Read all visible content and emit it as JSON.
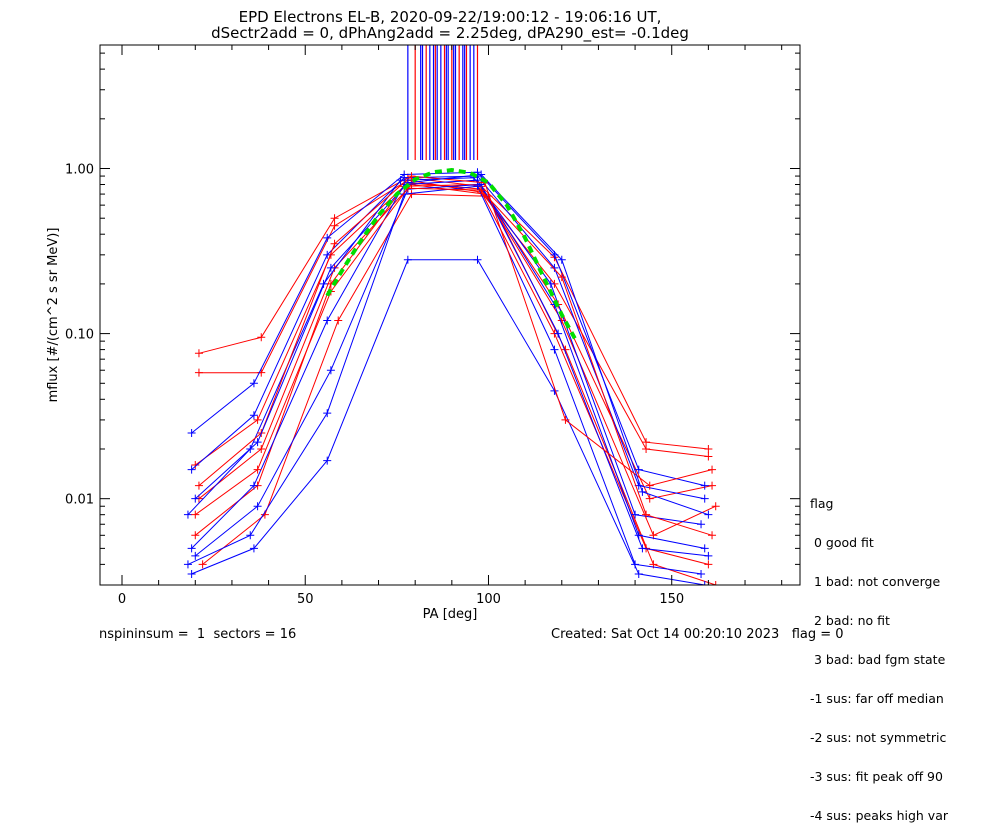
{
  "chart_data": {
    "type": "scatter",
    "title": "EPD Electrons EL-B, 2020-09-22/19:00:12 - 19:06:16 UT,",
    "subtitle": "dSectr2add = 0, dPhAng2add = 2.25deg, dPA290_est=  -0.1deg",
    "xlabel": "PA [deg]",
    "ylabel": "mflux [#/(cm^2 s sr MeV)]",
    "xlim": [
      -6,
      185
    ],
    "ylim": [
      0.003,
      5.6
    ],
    "y_scale": "log",
    "x_ticks": [
      0,
      50,
      100,
      150
    ],
    "x_tick_labels": [
      "0",
      "50",
      "100",
      "150"
    ],
    "y_ticks": [
      0.01,
      0.1,
      1.0
    ],
    "y_tick_labels": [
      "0.01",
      "0.10",
      "1.00"
    ],
    "colors": {
      "red": "#ff0000",
      "blue": "#0000ff",
      "fit": "#00dd00",
      "axis": "#000000"
    },
    "series": [
      {
        "color": "red",
        "x": [
          21,
          38,
          58,
          78,
          98,
          118,
          143,
          160
        ],
        "y": [
          0.076,
          0.095,
          0.5,
          0.88,
          0.78,
          0.29,
          0.022,
          0.02
        ]
      },
      {
        "color": "red",
        "x": [
          21,
          38,
          58,
          78,
          98,
          118,
          143,
          160
        ],
        "y": [
          0.058,
          0.058,
          0.45,
          0.85,
          0.72,
          0.2,
          0.02,
          0.018
        ]
      },
      {
        "color": "red",
        "x": [
          20,
          37,
          57,
          78,
          98,
          119,
          144,
          161
        ],
        "y": [
          0.016,
          0.03,
          0.3,
          0.82,
          0.75,
          0.15,
          0.01,
          0.012
        ]
      },
      {
        "color": "red",
        "x": [
          21,
          38,
          58,
          79,
          99,
          120,
          145,
          162
        ],
        "y": [
          0.01,
          0.02,
          0.25,
          0.8,
          0.7,
          0.12,
          0.006,
          0.009
        ]
      },
      {
        "color": "red",
        "x": [
          20,
          37,
          57,
          77,
          97,
          118,
          143,
          160
        ],
        "y": [
          0.006,
          0.012,
          0.2,
          0.78,
          0.8,
          0.1,
          0.005,
          0.004
        ]
      },
      {
        "color": "red",
        "x": [
          22,
          39,
          59,
          79,
          100,
          121,
          145,
          162
        ],
        "y": [
          0.004,
          0.008,
          0.12,
          0.7,
          0.68,
          0.08,
          0.004,
          0.003
        ]
      },
      {
        "color": "blue",
        "x": [
          19,
          36,
          56,
          77,
          97,
          118,
          141,
          159
        ],
        "y": [
          0.025,
          0.05,
          0.38,
          0.92,
          0.95,
          0.3,
          0.015,
          0.012
        ]
      },
      {
        "color": "blue",
        "x": [
          19,
          36,
          56,
          77,
          97,
          118,
          141,
          159
        ],
        "y": [
          0.015,
          0.032,
          0.3,
          0.88,
          0.9,
          0.25,
          0.012,
          0.01
        ]
      },
      {
        "color": "blue",
        "x": [
          18,
          35,
          55,
          76,
          96,
          117,
          140,
          158
        ],
        "y": [
          0.008,
          0.02,
          0.2,
          0.85,
          0.88,
          0.2,
          0.008,
          0.007
        ]
      },
      {
        "color": "blue",
        "x": [
          19,
          36,
          56,
          77,
          97,
          118,
          141,
          159
        ],
        "y": [
          0.005,
          0.012,
          0.12,
          0.8,
          0.85,
          0.15,
          0.006,
          0.005
        ]
      },
      {
        "color": "blue",
        "x": [
          20,
          37,
          57,
          78,
          98,
          119,
          142,
          160
        ],
        "y": [
          0.0045,
          0.009,
          0.06,
          0.75,
          0.8,
          0.1,
          0.005,
          0.0045
        ]
      },
      {
        "color": "blue",
        "x": [
          18,
          35,
          56,
          77,
          97,
          118,
          140,
          158
        ],
        "y": [
          0.004,
          0.006,
          0.033,
          0.7,
          0.78,
          0.08,
          0.004,
          0.0035
        ]
      },
      {
        "color": "blue",
        "x": [
          19,
          36,
          56,
          78,
          97,
          118,
          141,
          159
        ],
        "y": [
          0.0035,
          0.005,
          0.017,
          0.28,
          0.28,
          0.045,
          0.0035,
          0.003
        ]
      },
      {
        "color": "red",
        "x": [
          21,
          38,
          58,
          79,
          99,
          121,
          144,
          161
        ],
        "y": [
          0.012,
          0.025,
          0.35,
          0.9,
          0.82,
          0.03,
          0.012,
          0.015
        ]
      },
      {
        "color": "blue",
        "x": [
          20,
          37,
          57,
          78,
          98,
          120,
          142,
          160
        ],
        "y": [
          0.01,
          0.022,
          0.25,
          0.82,
          0.92,
          0.28,
          0.011,
          0.008
        ]
      },
      {
        "color": "red",
        "x": [
          20,
          37,
          57,
          78,
          98,
          120,
          143,
          161
        ],
        "y": [
          0.008,
          0.015,
          0.18,
          0.76,
          0.74,
          0.22,
          0.008,
          0.006
        ]
      }
    ],
    "fit_curve": {
      "color": "fit",
      "style": "dashed",
      "x": [
        56,
        60,
        65,
        70,
        75,
        80,
        85,
        90,
        95,
        100,
        105,
        110,
        115,
        120,
        124
      ],
      "y": [
        0.17,
        0.24,
        0.36,
        0.52,
        0.7,
        0.86,
        0.95,
        0.98,
        0.94,
        0.82,
        0.6,
        0.38,
        0.22,
        0.13,
        0.09
      ]
    },
    "spikes_x": [
      78,
      80,
      81.5,
      82,
      83,
      84,
      85,
      85.5,
      86,
      87,
      88,
      88.5,
      89,
      90,
      90.5,
      91,
      92,
      93,
      93.5,
      94,
      95,
      96,
      97
    ]
  },
  "legend": {
    "title": "flag",
    "items": [
      " 0 good fit",
      " 1 bad: not converge",
      " 2 bad: no fit",
      " 3 bad: bad fgm state",
      "-1 sus: far off median",
      "-2 sus: not symmetric",
      "-3 sus: fit peak off 90",
      "-4 sus: peaks high var"
    ]
  },
  "footer": {
    "left": "nspininsum =  1  sectors = 16",
    "right": "Created: Sat Oct 14 00:20:10 2023   flag = 0"
  }
}
